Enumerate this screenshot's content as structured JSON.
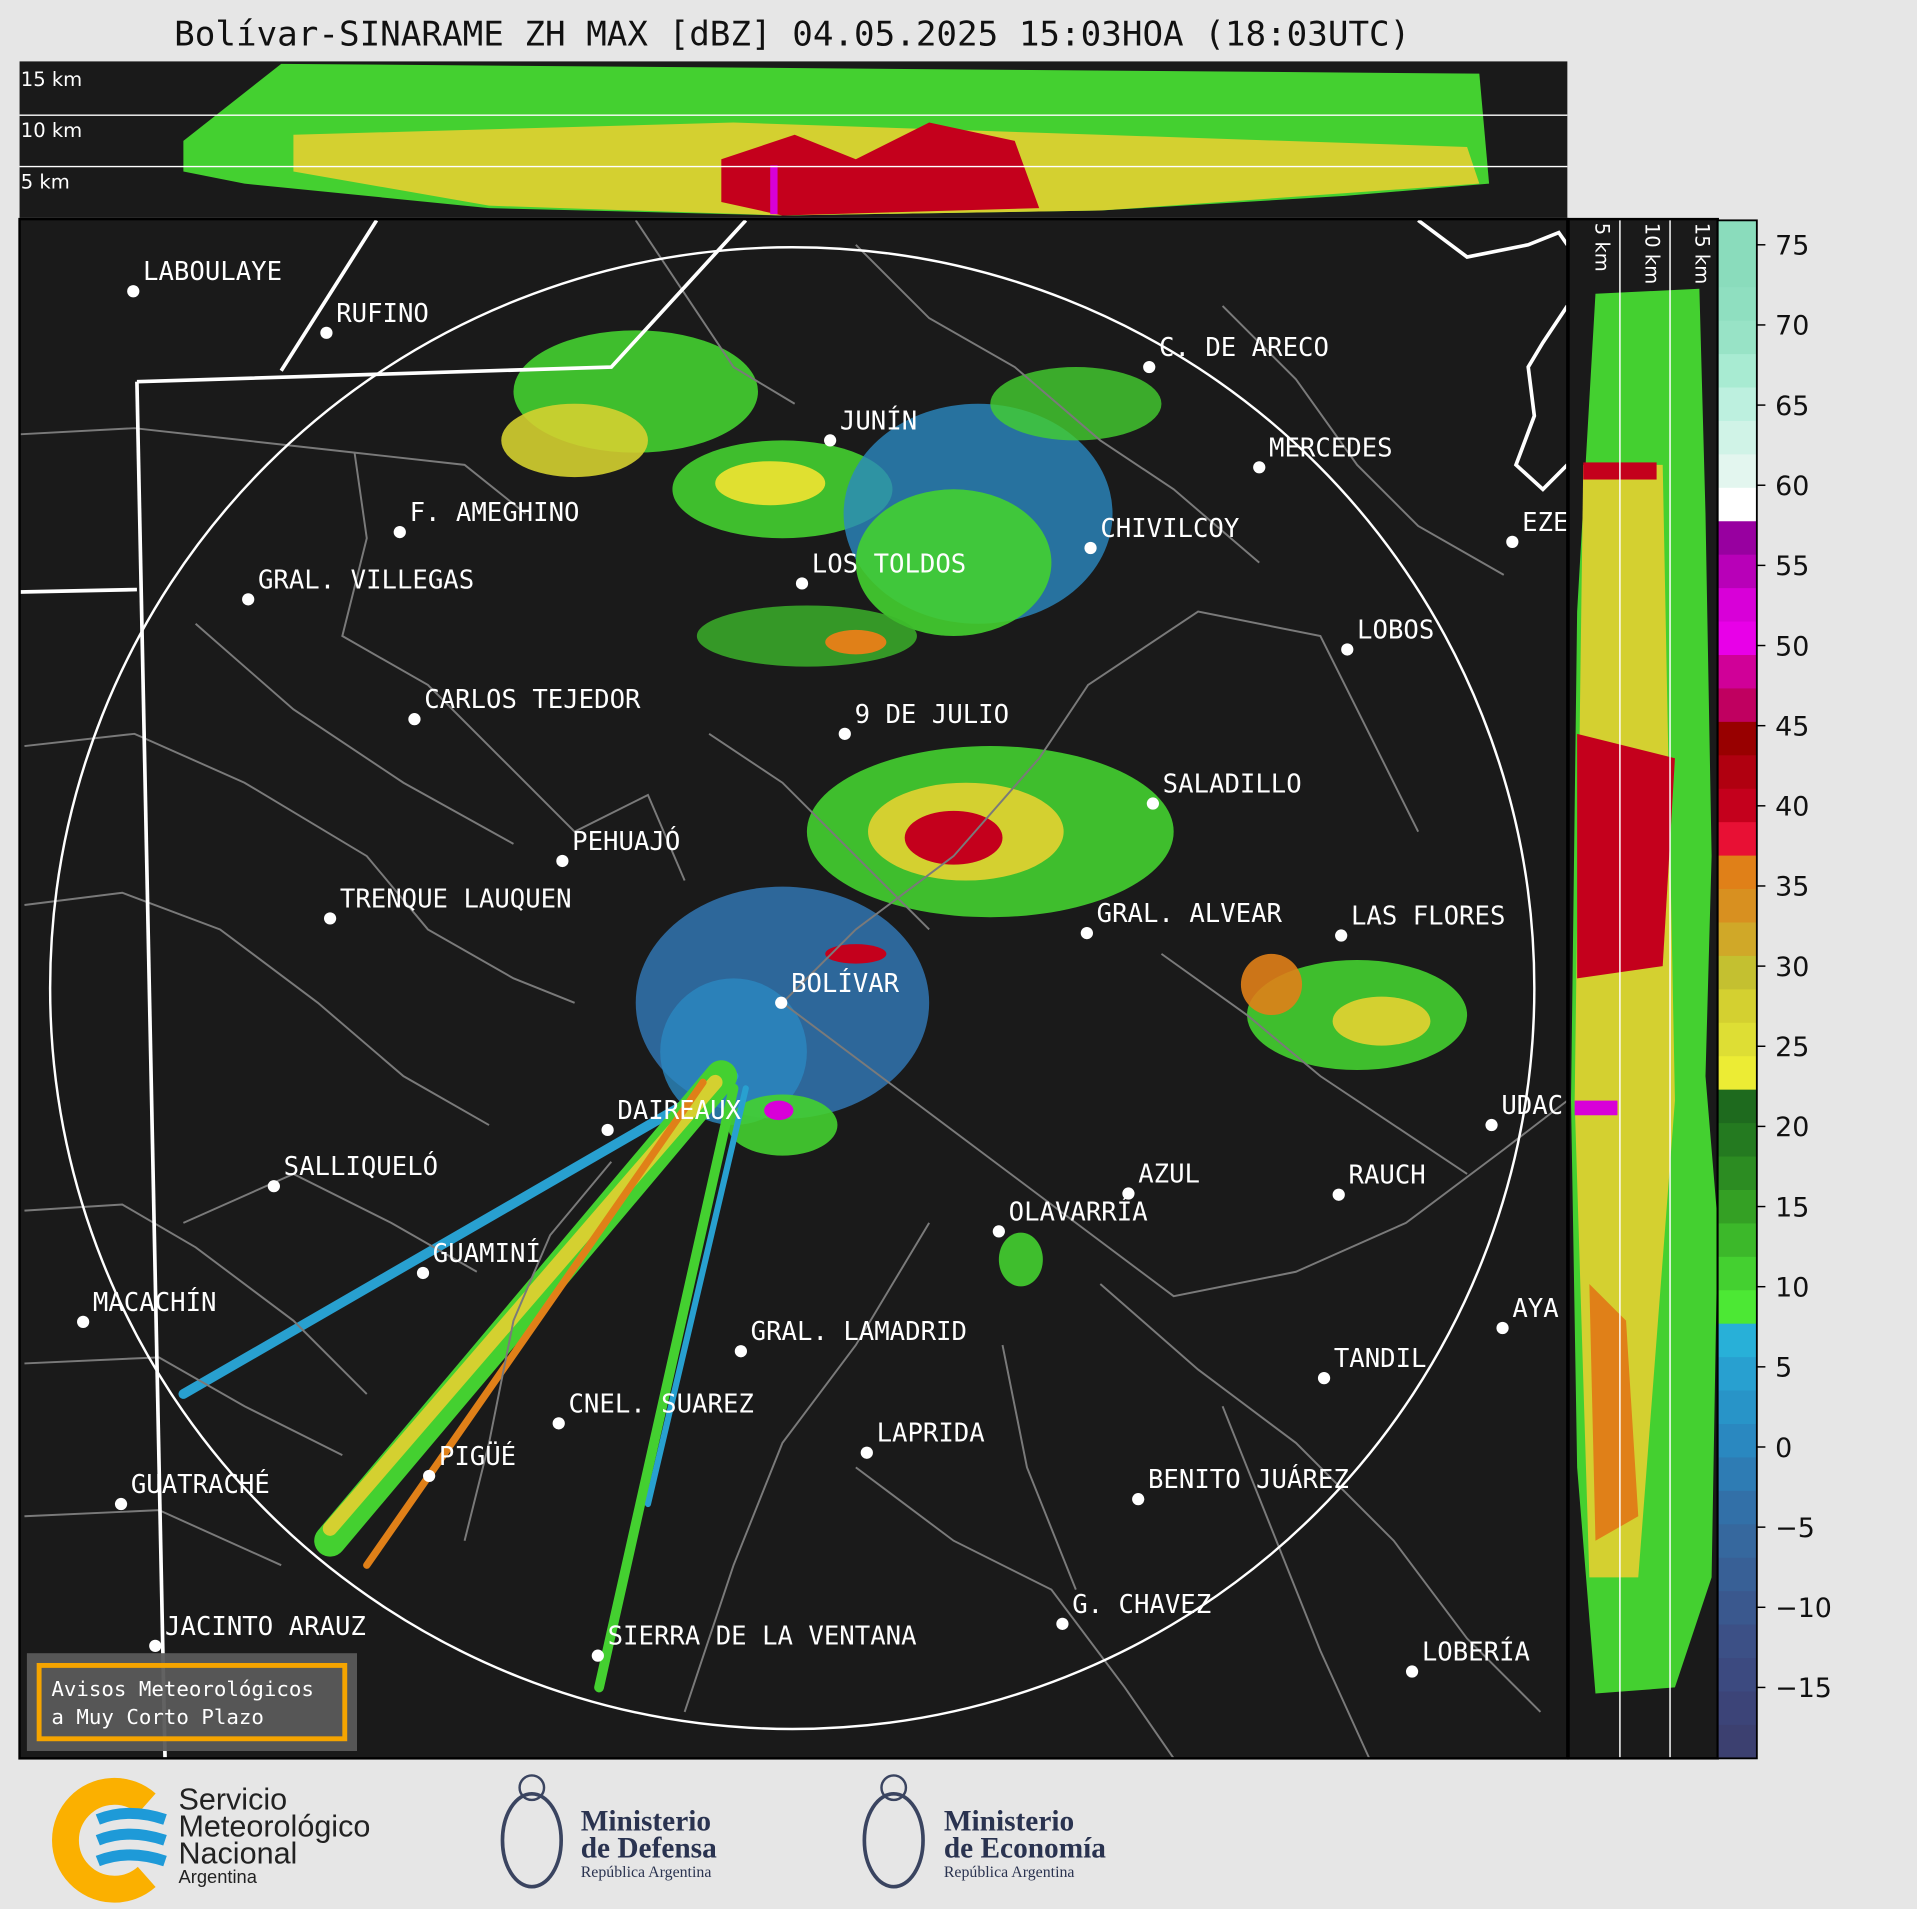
{
  "title": "Bolívar-SINARAME ZH MAX [dBZ] 04.05.2025 15:03HOA (18:03UTC)",
  "top_panel": {
    "height_labels": [
      "15 km",
      "10 km",
      "5 km"
    ]
  },
  "side_panel": {
    "height_labels": [
      "5 km",
      "10 km",
      "15 km"
    ]
  },
  "colorbar": {
    "ticks": [
      "75",
      "70",
      "65",
      "60",
      "55",
      "50",
      "45",
      "40",
      "35",
      "30",
      "25",
      "20",
      "15",
      "10",
      "5",
      "0",
      "−5",
      "−10",
      "−15"
    ],
    "colors": [
      "#8adcbc",
      "#8adcbc",
      "#8fdfc0",
      "#98e3c6",
      "#a8ebd2",
      "#bdf0df",
      "#d0f3e7",
      "#e3f6ef",
      "#ffffff",
      "#9800a0",
      "#b800b8",
      "#d800d8",
      "#e800e8",
      "#d00098",
      "#c00060",
      "#980000",
      "#b00010",
      "#c4001c",
      "#e81034",
      "#e08018",
      "#d89020",
      "#d0a828",
      "#c4c030",
      "#d4d030",
      "#dede34",
      "#ecec34",
      "#1e6a1e",
      "#247a20",
      "#2c8c22",
      "#34a024",
      "#3cb82a",
      "#44d030",
      "#4ce834",
      "#28b0d8",
      "#28a0d0",
      "#2894c8",
      "#2a88c0",
      "#2e7cb4",
      "#3270a8",
      "#36689e",
      "#386096",
      "#3a588e",
      "#3c5086",
      "#3c4a80",
      "#3c4478",
      "#3c4070"
    ]
  },
  "map": {
    "cities": [
      "LABOULAYE",
      "RUFINO",
      "C. DE ARECO",
      "JUNÍN",
      "MERCEDES",
      "F. AMEGHINO",
      "CHIVILCOY",
      "EZE",
      "LOS TOLDOS",
      "GRAL. VILLEGAS",
      "LOBOS",
      "CARLOS TEJEDOR",
      "9 DE JULIO",
      "SALADILLO",
      "PEHUAJÓ",
      "TRENQUE LAUQUEN",
      "GRAL. ALVEAR",
      "LAS FLORES",
      "BOLÍVAR",
      "UDAC",
      "DAIREAUX",
      "SALLIQUELÓ",
      "AZUL",
      "RAUCH",
      "OLAVARRÍA",
      "GUAMINÍ",
      "MACACHÍN",
      "AYA",
      "GRAL. LAMADRID",
      "TANDIL",
      "CNEL. SUAREZ",
      "LAPRIDA",
      "PIGÜÉ",
      "GUATRACHÉ",
      "BENITO JUÁREZ",
      "G. CHAVEZ",
      "JACINTO ARAUZ",
      "SIERRA DE LA VENTANA",
      "LOBERÍA"
    ],
    "warning_box": [
      "Avisos Meteorológicos",
      "a Muy Corto Plazo"
    ],
    "warning_border_color": "#f5a400"
  },
  "logos": {
    "smn": [
      "Servicio",
      "Meteorológico",
      "Nacional",
      "Argentina"
    ],
    "defensa": [
      "Ministerio",
      "de Defensa",
      "República Argentina"
    ],
    "economia": [
      "Ministerio",
      "de Economía",
      "República Argentina"
    ]
  }
}
